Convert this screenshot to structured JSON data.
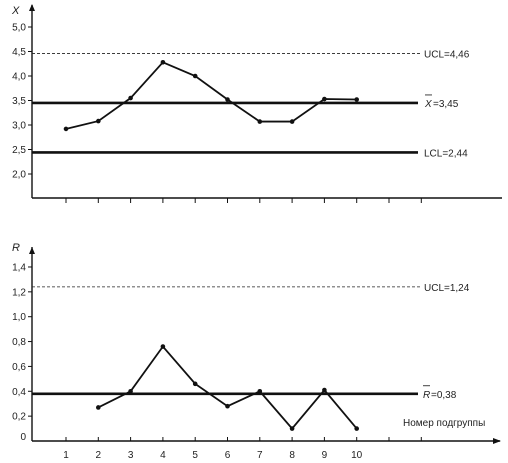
{
  "chart_data": [
    {
      "type": "line",
      "ylabel": "X",
      "ylim": [
        2.0,
        5.0
      ],
      "yticks": [
        "2,0",
        "2,5",
        "3,0",
        "3,5",
        "4,0",
        "4,5",
        "5,0"
      ],
      "x": [
        1,
        2,
        3,
        4,
        5,
        6,
        7,
        8,
        9,
        10
      ],
      "values": [
        2.92,
        3.08,
        3.55,
        4.28,
        4.0,
        3.52,
        3.07,
        3.07,
        3.53,
        3.52
      ],
      "limits": {
        "ucl": {
          "value": 4.46,
          "label": "UCL=4,46"
        },
        "center": {
          "value": 3.45,
          "label_prefix": "X",
          "label_suffix": "=3,45"
        },
        "lcl": {
          "value": 2.44,
          "label": "LCL=2,44"
        }
      }
    },
    {
      "type": "line",
      "ylabel": "R",
      "ylim": [
        0,
        1.4
      ],
      "yticks": [
        "0",
        "0,2",
        "0,4",
        "0,6",
        "0,8",
        "1,0",
        "1,2",
        "1,4"
      ],
      "xlabel": "Номер подгруппы",
      "xticks": [
        "1",
        "2",
        "3",
        "4",
        "5",
        "6",
        "7",
        "8",
        "9",
        "10"
      ],
      "x": [
        2,
        3,
        4,
        5,
        6,
        7,
        8,
        9,
        10
      ],
      "values": [
        0.27,
        0.4,
        0.76,
        0.46,
        0.28,
        0.4,
        0.1,
        0.41,
        0.1
      ],
      "limits": {
        "ucl": {
          "value": 1.24,
          "label": "UCL=1,24"
        },
        "center": {
          "value": 0.38,
          "label_prefix": "R",
          "label_suffix": "=0,38"
        }
      }
    }
  ]
}
